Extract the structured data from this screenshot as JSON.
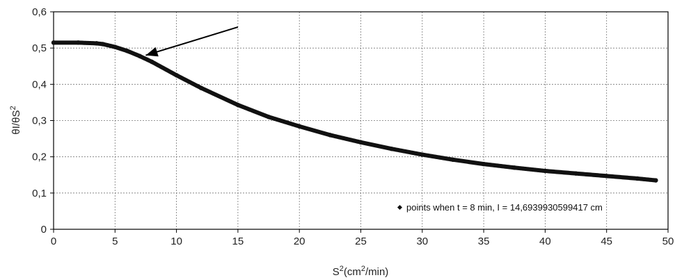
{
  "chart_data": {
    "type": "scatter",
    "xlabel": {
      "base": "S",
      "sup1": "2",
      "mid": "(cm",
      "sup2": "2",
      "end": "/min)"
    },
    "ylabel": {
      "base": "θI/θS",
      "sup": "2"
    },
    "xlim": [
      0,
      50
    ],
    "ylim": [
      0,
      0.6
    ],
    "x_ticks": [
      0,
      5,
      10,
      15,
      20,
      25,
      30,
      35,
      40,
      45,
      50
    ],
    "x_tick_labels": [
      "0",
      "5",
      "10",
      "15",
      "20",
      "25",
      "30",
      "35",
      "40",
      "45",
      "50"
    ],
    "y_ticks": [
      0,
      0.1,
      0.2,
      0.3,
      0.4,
      0.5,
      0.6
    ],
    "y_tick_labels": [
      "0",
      "0,1",
      "0,2",
      "0,3",
      "0,4",
      "0,5",
      "0,6"
    ],
    "grid": true,
    "legend_position": "bottom-right",
    "series": [
      {
        "name": "points when t = 8 min, I = 14,6939930599417 cm",
        "color": "#111111",
        "x": [
          0,
          2,
          3.5,
          4,
          5,
          6,
          7,
          8,
          10,
          12,
          15,
          17.5,
          20,
          22.5,
          25,
          27.5,
          30,
          32.5,
          35,
          37.5,
          40,
          42.5,
          45,
          47.5,
          49
        ],
        "y": [
          0.515,
          0.515,
          0.513,
          0.511,
          0.503,
          0.492,
          0.478,
          0.462,
          0.425,
          0.39,
          0.343,
          0.31,
          0.284,
          0.26,
          0.24,
          0.222,
          0.206,
          0.192,
          0.18,
          0.17,
          0.161,
          0.154,
          0.147,
          0.14,
          0.135
        ]
      }
    ],
    "annotations": [
      {
        "type": "arrow",
        "from": [
          15,
          0.558
        ],
        "to": [
          7.5,
          0.48
        ]
      }
    ]
  }
}
